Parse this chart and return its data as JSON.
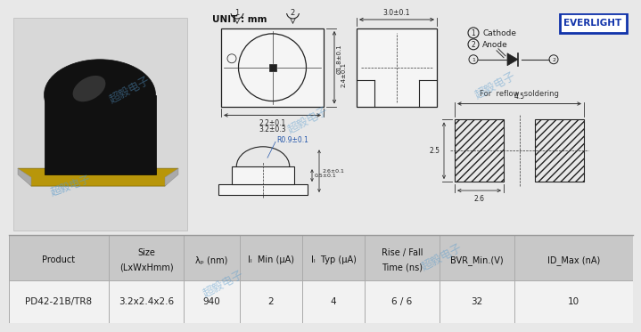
{
  "title": "UNIT : mm",
  "everlight_logo": "EVERLIGHT",
  "watermark": "超毅电子",
  "table_headers": [
    "Product",
    "Size\n(LxWxHmm)",
    "λₚ (nm)",
    "Iₗ  Min (μA)",
    "Iₗ  Typ (μA)",
    "Rise / Fall\nTime (ns)",
    "BVR_Min.(V)",
    "ID_Max (nA)"
  ],
  "table_data": [
    [
      "PD42-21B/TR8",
      "3.2x2.4x2.6",
      "940",
      "2",
      "4",
      "6 / 6",
      "32",
      "10"
    ]
  ],
  "header_bg": "#c8c8c8",
  "row_bg": "#f0f0f0",
  "top_bg": "#e8e8e8",
  "dim_top_w": "2.2±0.1",
  "dim_top_w2": "3.2±0.3",
  "dim_top_h": "Ø1.8±0.1",
  "dim_top_h2": "2.4±0.1",
  "dim_side_w": "3.0±0.1",
  "dim_bot_r": "R0.9±0.1",
  "dim_bot_h1": "0.5±0.1",
  "dim_bot_h2": "2.6±0.1",
  "dim_pad_total": "4.5",
  "dim_pad_h": "2.5",
  "dim_pad_w": "2.6",
  "cathode": "Cathode",
  "anode": "Anode",
  "for_reflow": "For  reflow  soldering",
  "col_positions": [
    0,
    112,
    196,
    259,
    329,
    399,
    483,
    567,
    700
  ]
}
